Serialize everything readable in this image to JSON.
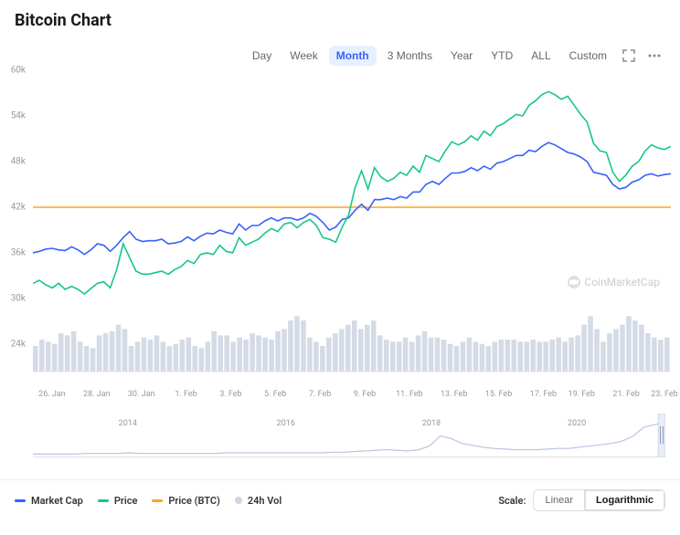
{
  "title": "Bitcoin Chart",
  "timeframes": {
    "items": [
      "Day",
      "Week",
      "Month",
      "3 Months",
      "Year",
      "YTD",
      "ALL",
      "Custom"
    ],
    "active": 2
  },
  "chart": {
    "type": "line",
    "ylim": [
      18,
      60
    ],
    "yticks": [
      24,
      30,
      36,
      42,
      48,
      54,
      60
    ],
    "ytick_labels": [
      "24k",
      "30k",
      "36k",
      "42k",
      "48k",
      "54k",
      "60k"
    ],
    "reference_line": {
      "value": 42,
      "color": "#f5a623"
    },
    "grid_color": "#f0f0f0",
    "background_color": "#ffffff",
    "series": [
      {
        "name": "Market Cap",
        "color": "#3861fb",
        "stroke_width": 1.6,
        "data": [
          36,
          36.2,
          36.5,
          36.6,
          36.4,
          36.3,
          36.8,
          36.4,
          35.8,
          36.4,
          37.2,
          37.0,
          36.2,
          37.0,
          38.0,
          38.8,
          37.8,
          37.5,
          37.6,
          37.6,
          37.8,
          37.2,
          37.3,
          37.5,
          38.1,
          37.6,
          38.2,
          38.6,
          38.5,
          39.0,
          38.7,
          38.5,
          39.8,
          39.0,
          39.6,
          39.6,
          40.2,
          40.6,
          40.2,
          40.6,
          40.6,
          40.3,
          40.6,
          41.2,
          40.8,
          40.0,
          39.0,
          39.4,
          40.4,
          40.6,
          41.6,
          42.4,
          41.6,
          43.0,
          43.0,
          43.2,
          43.0,
          43.4,
          43.2,
          44.0,
          44.0,
          45.0,
          45.4,
          45.0,
          45.8,
          46.5,
          46.5,
          46.7,
          47.2,
          46.8,
          47.4,
          47.0,
          47.8,
          48.0,
          48.4,
          48.8,
          48.8,
          49.5,
          49.3,
          50.0,
          50.5,
          50.2,
          49.7,
          49.2,
          49.0,
          48.6,
          48.0,
          46.6,
          46.4,
          46.2,
          45.0,
          44.4,
          44.6,
          45.3,
          45.6,
          46.2,
          46.4,
          46.1,
          46.3,
          46.4
        ]
      },
      {
        "name": "Price",
        "color": "#16c784",
        "stroke_width": 1.6,
        "data": [
          32.0,
          32.4,
          31.8,
          31.4,
          32.0,
          31.2,
          31.6,
          31.2,
          30.6,
          31.3,
          32.0,
          32.2,
          31.4,
          33.8,
          37.2,
          35.4,
          33.6,
          33.2,
          33.2,
          33.4,
          33.6,
          33.2,
          33.8,
          34.2,
          35.0,
          34.6,
          35.8,
          36.0,
          35.8,
          37.0,
          36.2,
          36.0,
          38.0,
          37.0,
          37.4,
          37.8,
          38.6,
          39.2,
          38.8,
          39.8,
          40.0,
          39.3,
          40.0,
          40.4,
          39.6,
          38.0,
          37.8,
          37.4,
          39.4,
          41.0,
          44.6,
          46.8,
          44.4,
          47.2,
          46.0,
          45.4,
          45.8,
          46.6,
          46.2,
          47.4,
          46.6,
          48.8,
          48.4,
          48.0,
          49.4,
          50.6,
          50.2,
          50.6,
          51.4,
          50.8,
          52.0,
          51.4,
          52.6,
          53.0,
          53.6,
          54.2,
          54.0,
          55.4,
          56.0,
          56.8,
          57.2,
          56.8,
          56.2,
          56.6,
          55.4,
          54.2,
          53.2,
          50.4,
          49.4,
          49.2,
          46.6,
          45.4,
          46.2,
          47.4,
          48.0,
          49.4,
          50.2,
          49.8,
          49.6,
          50.0
        ]
      }
    ],
    "volume": {
      "color": "#d5dbe6",
      "data": [
        12,
        15,
        14,
        13,
        18,
        17,
        19,
        14,
        12,
        11,
        17,
        18,
        19,
        22,
        20,
        12,
        14,
        16,
        15,
        17,
        14,
        12,
        13,
        15,
        16,
        12,
        11,
        14,
        19,
        17,
        17,
        14,
        16,
        15,
        18,
        17,
        16,
        15,
        19,
        20,
        24,
        26,
        24,
        16,
        14,
        12,
        16,
        18,
        20,
        22,
        24,
        20,
        22,
        24,
        17,
        15,
        14,
        14,
        16,
        14,
        17,
        19,
        16,
        16,
        15,
        13,
        12,
        14,
        16,
        14,
        13,
        12,
        14,
        15,
        15,
        15,
        14,
        14,
        15,
        14,
        14,
        15,
        16,
        14,
        16,
        17,
        22,
        26,
        20,
        14,
        18,
        20,
        22,
        26,
        24,
        22,
        18,
        16,
        15,
        16
      ],
      "max": 30
    },
    "xticks": [
      {
        "pos": 0.03,
        "label": "26. Jan"
      },
      {
        "pos": 0.1,
        "label": "28. Jan"
      },
      {
        "pos": 0.17,
        "label": "30. Jan"
      },
      {
        "pos": 0.24,
        "label": "1. Feb"
      },
      {
        "pos": 0.31,
        "label": "3. Feb"
      },
      {
        "pos": 0.38,
        "label": "5. Feb"
      },
      {
        "pos": 0.45,
        "label": "7. Feb"
      },
      {
        "pos": 0.52,
        "label": "9. Feb"
      },
      {
        "pos": 0.59,
        "label": "11. Feb"
      },
      {
        "pos": 0.66,
        "label": "13. Feb"
      },
      {
        "pos": 0.73,
        "label": "15. Feb"
      },
      {
        "pos": 0.8,
        "label": "17. Feb"
      },
      {
        "pos": 0.86,
        "label": "19. Feb"
      },
      {
        "pos": 0.93,
        "label": "21. Feb"
      },
      {
        "pos": 0.99,
        "label": "23. Feb"
      }
    ]
  },
  "brush": {
    "ticks": [
      {
        "pos": 0.15,
        "label": "2014"
      },
      {
        "pos": 0.4,
        "label": "2016"
      },
      {
        "pos": 0.63,
        "label": "2018"
      },
      {
        "pos": 0.86,
        "label": "2020"
      }
    ],
    "line_color": "#b8c4e0",
    "data": [
      1,
      1,
      1,
      1,
      1,
      2,
      2,
      2,
      2,
      3,
      2,
      2,
      2,
      2,
      2,
      2,
      2,
      2,
      3,
      3,
      3,
      3,
      3,
      3,
      3,
      3,
      3,
      3,
      4,
      4,
      5,
      6,
      7,
      8,
      7,
      6,
      8,
      14,
      30,
      26,
      18,
      15,
      12,
      10,
      9,
      8,
      8,
      8,
      9,
      10,
      10,
      12,
      14,
      16,
      18,
      22,
      30,
      44,
      48,
      52
    ],
    "ymax": 60
  },
  "watermark": "CoinMarketCap",
  "legend": {
    "items": [
      {
        "label": "Market Cap",
        "type": "line",
        "color": "#3861fb"
      },
      {
        "label": "Price",
        "type": "line",
        "color": "#16c784"
      },
      {
        "label": "Price (BTC)",
        "type": "line",
        "color": "#f5a623"
      },
      {
        "label": "24h Vol",
        "type": "dot",
        "color": "#cfd6e4"
      }
    ]
  },
  "scale": {
    "label": "Scale:",
    "options": [
      "Linear",
      "Logarithmic"
    ],
    "active": 1
  }
}
